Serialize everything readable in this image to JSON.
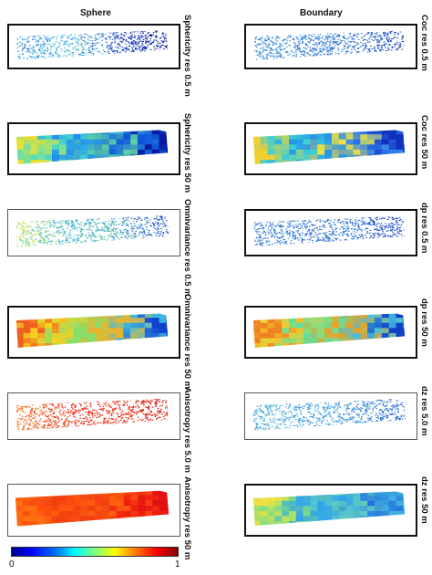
{
  "columns": {
    "left_title": "Sphere",
    "right_title": "Boundary"
  },
  "panels": [
    {
      "id": "sph-1",
      "label": "Sphericity res 0.5 m",
      "kind": "points",
      "gradient": [
        "#1f77d8",
        "#3ab0e8",
        "#6fd0d0",
        "#2a5bd0",
        "#0f2fb8",
        "#0a1a9a"
      ]
    },
    {
      "id": "sph-2",
      "label": "Sphericity res 50 m",
      "kind": "grid",
      "gradient": [
        "#e8e030",
        "#50e0c0",
        "#2090f0",
        "#60d0a0",
        "#1060e0",
        "#0818a0"
      ]
    },
    {
      "id": "omn-1",
      "label": "Omnivariance res 0.5 m",
      "kind": "points",
      "gradient": [
        "#c8e040",
        "#60d0b0",
        "#2ea0e0",
        "#70d090",
        "#2a80e0",
        "#1040c8"
      ]
    },
    {
      "id": "omn-2",
      "label": "Omnivariance res 50 m",
      "kind": "grid",
      "gradient": [
        "#f06020",
        "#f8d020",
        "#80e070",
        "#f8b020",
        "#40c0e0",
        "#1040d0"
      ]
    },
    {
      "id": "ani-1",
      "label": "Anisotropy res 5.0 m",
      "kind": "points",
      "gradient": [
        "#f08020",
        "#ff4010",
        "#e82010",
        "#ff3010",
        "#e81808",
        "#d01010"
      ]
    },
    {
      "id": "ani-2",
      "label": "Anisotropy res 50 m",
      "kind": "grid",
      "gradient": [
        "#ff7010",
        "#ff5010",
        "#f04010",
        "#ff6010",
        "#f02010",
        "#e01010"
      ]
    },
    {
      "id": "coc-1",
      "label": "Coc res 0.5 m",
      "kind": "points",
      "gradient": [
        "#2a7ad8",
        "#3a9ae0",
        "#2a6ad0",
        "#2a80d8",
        "#1a50c8",
        "#1840c0"
      ]
    },
    {
      "id": "coc-2",
      "label": "Coc res 50 m",
      "kind": "grid",
      "gradient": [
        "#f0d030",
        "#40d0d0",
        "#2090f0",
        "#f0e040",
        "#3080f0",
        "#1030c0"
      ]
    },
    {
      "id": "dp-1",
      "label": "dp res 0.5 m",
      "kind": "points",
      "gradient": [
        "#2a70d8",
        "#3a90e0",
        "#2a60d0",
        "#2a80d8",
        "#1a50c8",
        "#1840c0"
      ]
    },
    {
      "id": "dp-2",
      "label": "dp res 50 m",
      "kind": "grid",
      "gradient": [
        "#f08020",
        "#f0d030",
        "#60e0a0",
        "#f0a020",
        "#40c0e0",
        "#1040c8"
      ]
    },
    {
      "id": "dz-1",
      "label": "dz res 5.0 m",
      "kind": "points",
      "gradient": [
        "#40a0e0",
        "#60c0e0",
        "#3a90e0",
        "#50b0e0",
        "#2a70d8",
        "#2060d0"
      ]
    },
    {
      "id": "dz-2",
      "label": "dz res 50 m",
      "kind": "grid",
      "gradient": [
        "#f0e040",
        "#80e080",
        "#30a0f0",
        "#60d0c0",
        "#2070e0",
        "#40b0e0"
      ]
    }
  ],
  "colorbar": {
    "min": "0",
    "max": "1"
  }
}
